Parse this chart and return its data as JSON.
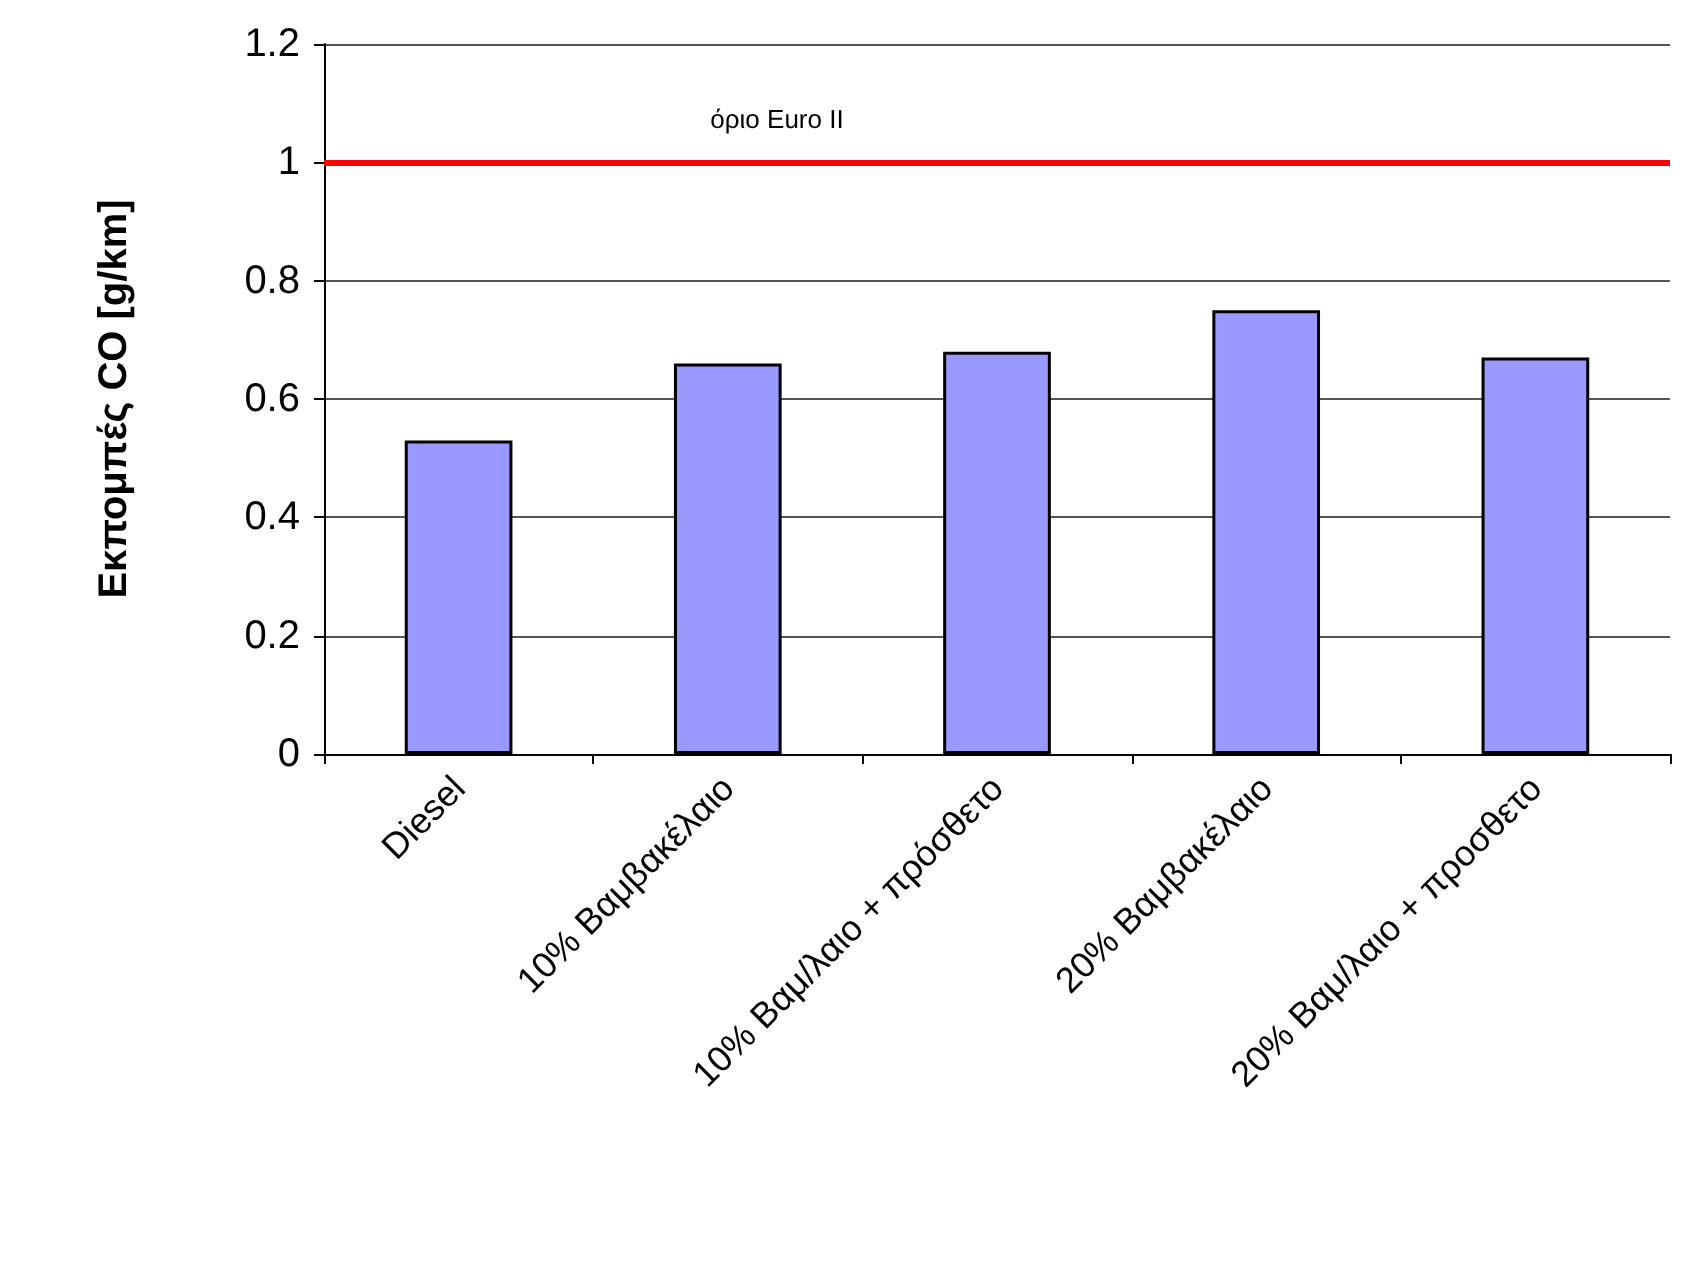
{
  "chart_data": {
    "type": "bar",
    "ylabel": "Εκπομπές CO [g/km]",
    "categories": [
      "Diesel",
      "10% Βαμβακέλαιο",
      "10% Βαμ/λαιο + πρόσθετο",
      "20% Βαμβακέλαιο",
      "20% Βαμ/λαιο + προσθετο"
    ],
    "values": [
      0.53,
      0.66,
      0.68,
      0.75,
      0.67
    ],
    "color": "#9999ff",
    "ylim": [
      0,
      1.2
    ],
    "yticks": [
      0,
      0.2,
      0.4,
      0.6,
      0.8,
      1,
      1.2
    ],
    "grid": "y",
    "ref_lines": [
      {
        "axis": "y",
        "value": 1,
        "label": "όριο Euro II",
        "color": "#ff0000",
        "line_style": "solid"
      }
    ]
  }
}
